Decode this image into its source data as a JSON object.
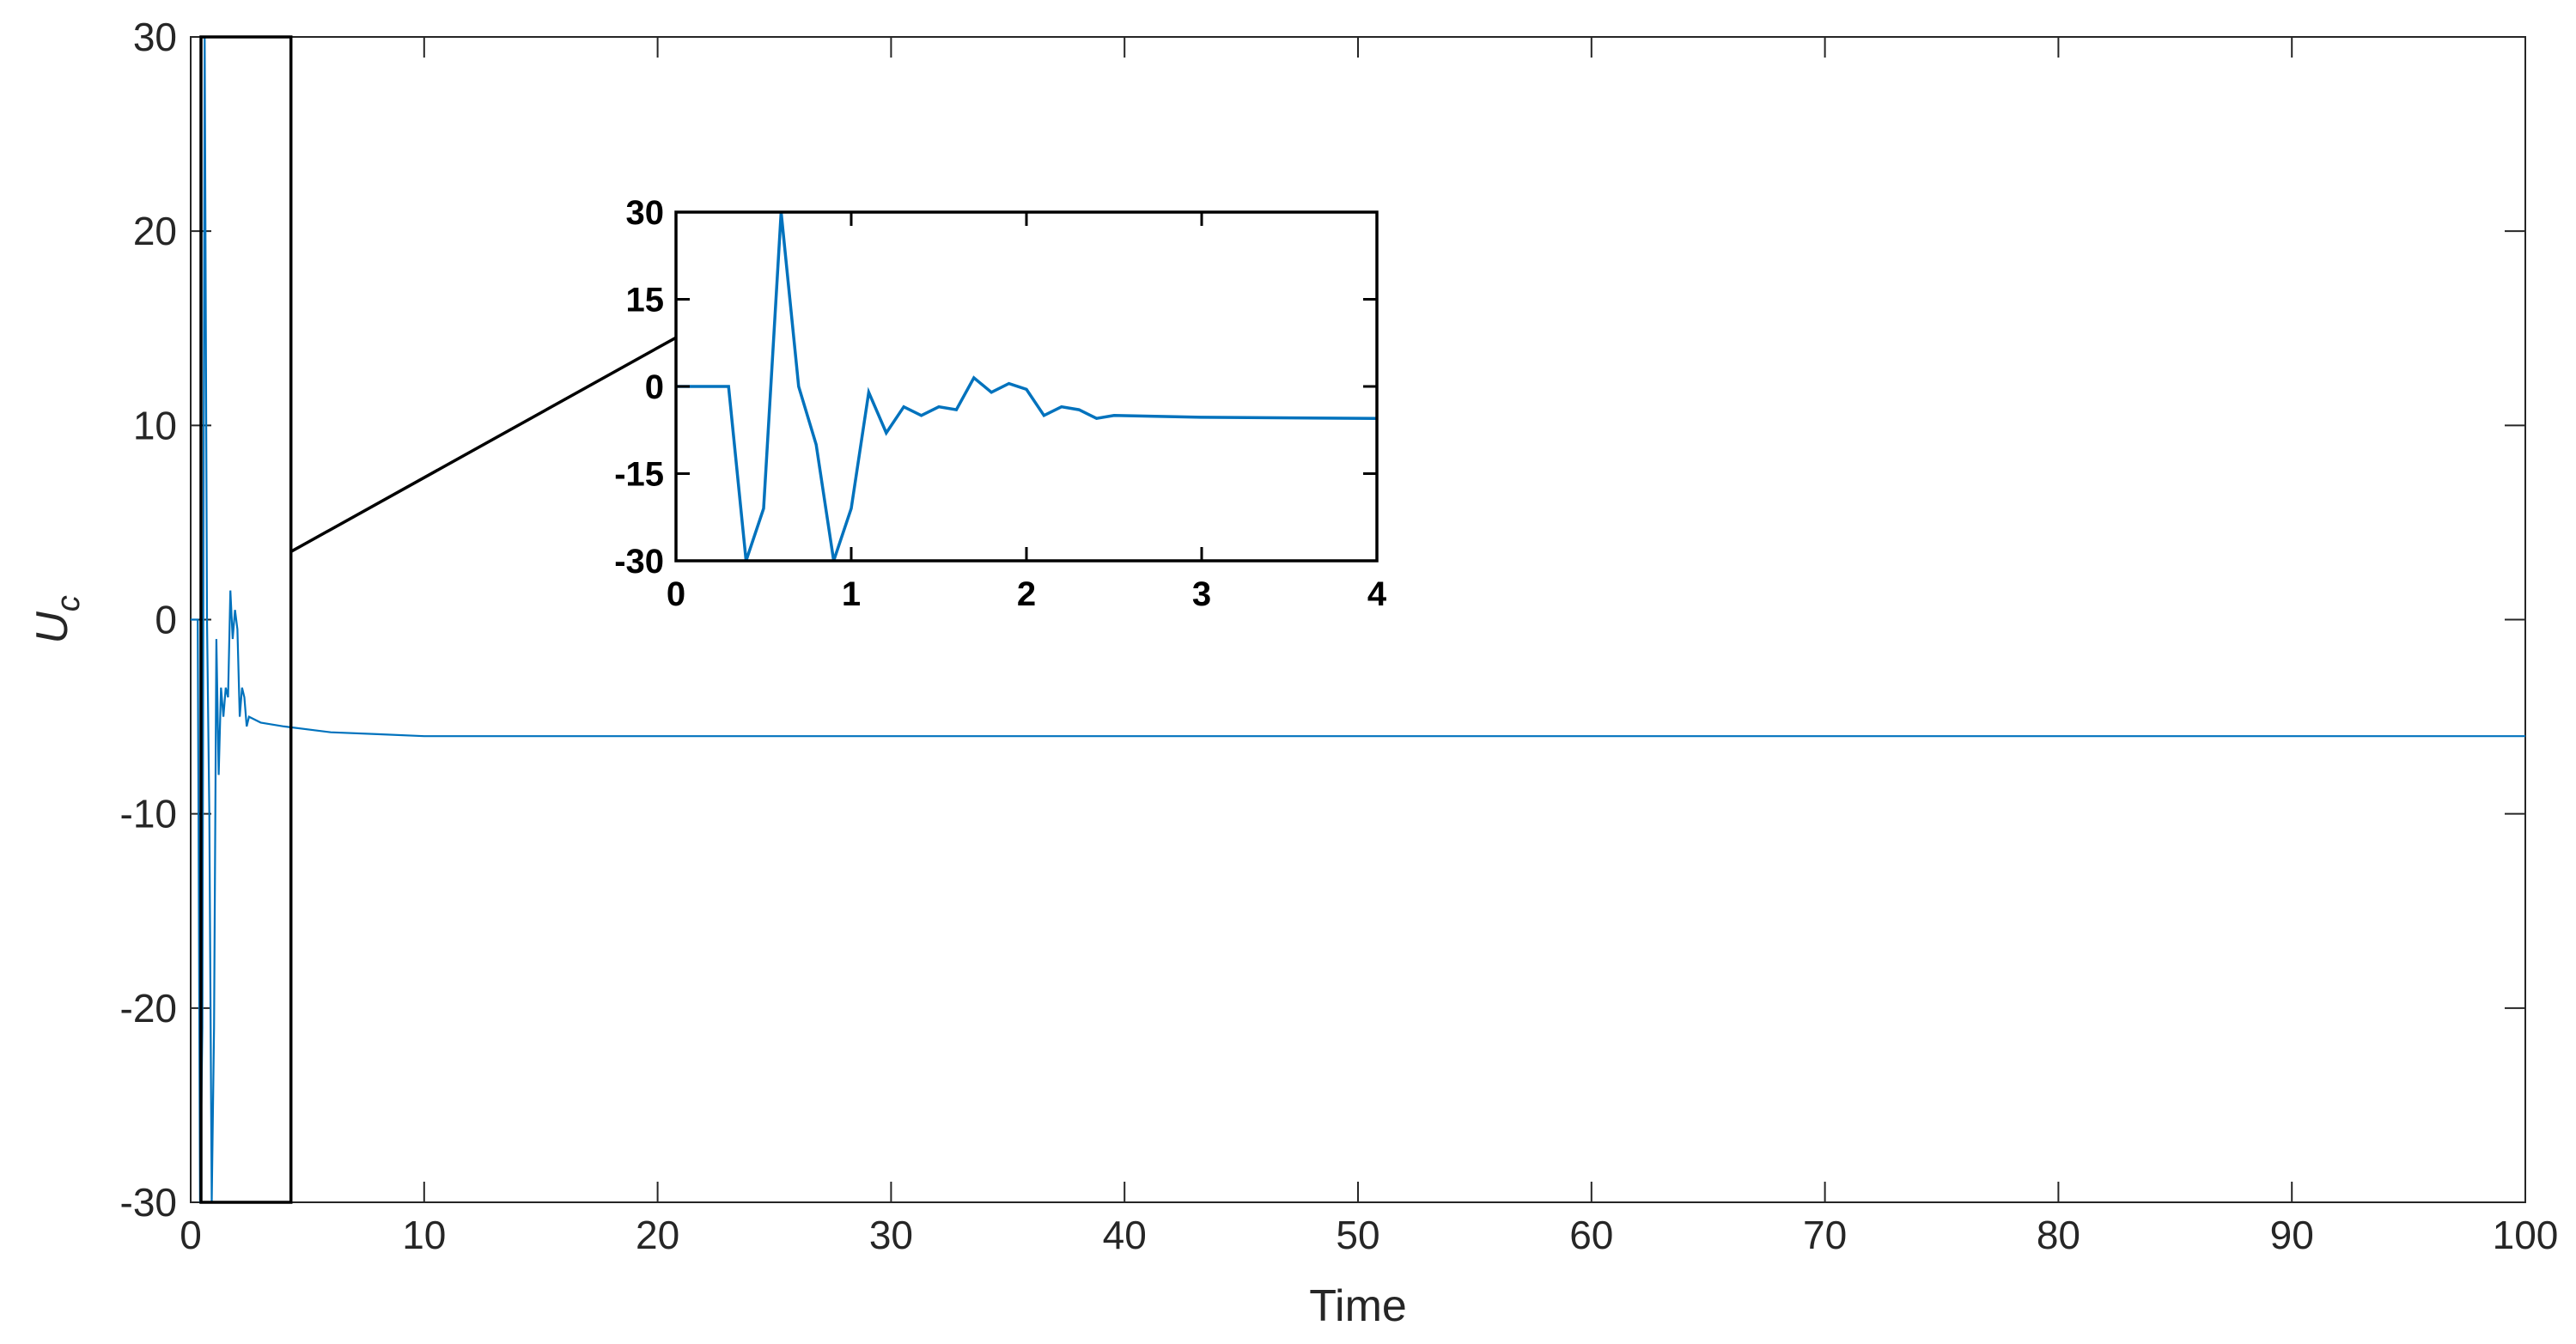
{
  "chart_data": [
    {
      "type": "line",
      "name": "main",
      "xlabel": "Time",
      "ylabel": "U",
      "ylabel_sub": "c",
      "xlim": [
        0,
        100
      ],
      "ylim": [
        -30,
        30
      ],
      "xticks": [
        0,
        10,
        20,
        30,
        40,
        50,
        60,
        70,
        80,
        90,
        100
      ],
      "yticks": [
        -30,
        -20,
        -10,
        0,
        10,
        20,
        30
      ],
      "color": "#0072BD",
      "grid": false,
      "zoom_box": {
        "x": [
          0,
          4
        ],
        "y": [
          -30,
          30
        ]
      },
      "x": [
        0,
        0.3,
        0.4,
        0.5,
        0.6,
        0.7,
        0.8,
        0.9,
        1.0,
        1.1,
        1.2,
        1.3,
        1.4,
        1.5,
        1.6,
        1.7,
        1.8,
        1.9,
        2.0,
        2.1,
        2.2,
        2.3,
        2.4,
        2.5,
        3.0,
        4.0,
        6,
        8,
        10,
        15,
        20,
        30,
        40,
        50,
        60,
        70,
        80,
        90,
        100
      ],
      "y": [
        0,
        0,
        -30,
        -21,
        30,
        0,
        -10,
        -30,
        -21,
        -1,
        -8,
        -3.5,
        -5,
        -3.5,
        -4,
        1.5,
        -1,
        0.5,
        -0.5,
        -5,
        -3.5,
        -4,
        -5.5,
        -5,
        -5.3,
        -5.5,
        -5.8,
        -5.9,
        -6,
        -6,
        -6,
        -6,
        -6,
        -6,
        -6,
        -6,
        -6,
        -6,
        -6
      ]
    },
    {
      "type": "line",
      "name": "inset",
      "xlim": [
        0,
        4
      ],
      "ylim": [
        -30,
        30
      ],
      "xticks": [
        0,
        1,
        2,
        3,
        4
      ],
      "yticks": [
        -30,
        -15,
        0,
        15,
        30
      ],
      "color": "#0072BD",
      "x": [
        0,
        0.3,
        0.4,
        0.5,
        0.6,
        0.7,
        0.8,
        0.9,
        1.0,
        1.1,
        1.2,
        1.3,
        1.4,
        1.5,
        1.6,
        1.7,
        1.8,
        1.9,
        2.0,
        2.1,
        2.2,
        2.3,
        2.4,
        2.5,
        3.0,
        4.0
      ],
      "y": [
        0,
        0,
        -30,
        -21,
        30,
        0,
        -10,
        -30,
        -21,
        -1,
        -8,
        -3.5,
        -5,
        -3.5,
        -4,
        1.5,
        -1,
        0.5,
        -0.5,
        -5,
        -3.5,
        -4,
        -5.5,
        -5,
        -5.3,
        -5.5
      ]
    }
  ]
}
